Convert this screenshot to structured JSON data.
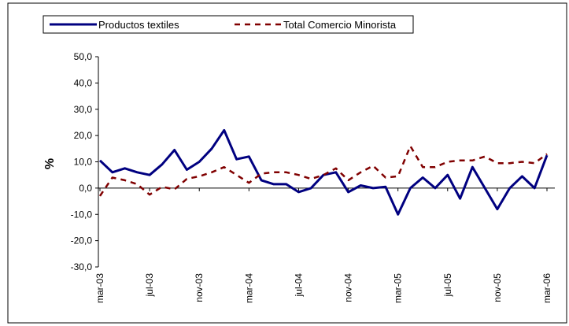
{
  "chart_data": {
    "type": "line",
    "y_label": "%",
    "categories": [
      "mar-03",
      null,
      null,
      null,
      "jul-03",
      null,
      null,
      null,
      "nov-03",
      null,
      null,
      null,
      "mar-04",
      null,
      null,
      null,
      "jul-04",
      null,
      null,
      null,
      "nov-04",
      null,
      null,
      null,
      "mar-05",
      null,
      null,
      null,
      "jul-05",
      null,
      null,
      null,
      "nov-05",
      null,
      null,
      null,
      "mar-06"
    ],
    "series": [
      {
        "name": "Productos textiles",
        "color": "#000080",
        "dash": false,
        "values": [
          10.5,
          6,
          7.5,
          6,
          5,
          9,
          14.5,
          7,
          10,
          15,
          22,
          11,
          12,
          3,
          1.5,
          1.5,
          -1.5,
          0,
          5,
          6,
          -1.5,
          1,
          0,
          0.5,
          -10,
          0,
          4,
          0,
          5,
          -4,
          8,
          0,
          -8,
          0,
          4.5,
          0,
          12.5
        ]
      },
      {
        "name": "Total Comercio Minorista",
        "color": "#800000",
        "dash": true,
        "values": [
          -3,
          4,
          3,
          1.5,
          -2.5,
          0.5,
          -0.5,
          3.5,
          4.5,
          6,
          8,
          5,
          2,
          5.5,
          6,
          6,
          5,
          3.5,
          5,
          7.5,
          3,
          6,
          8.5,
          4,
          4.5,
          16,
          8,
          8,
          10,
          10.5,
          10.5,
          12,
          9.5,
          9.5,
          10,
          9.5,
          13
        ]
      }
    ],
    "ylim": [
      -30,
      50
    ],
    "yticks": [
      {
        "value": -30,
        "label": "-30,0"
      },
      {
        "value": -20,
        "label": "-20,0"
      },
      {
        "value": -10,
        "label": "-10,0"
      },
      {
        "value": 0,
        "label": "0,0"
      },
      {
        "value": 10,
        "label": "10,0"
      },
      {
        "value": 20,
        "label": "20,0"
      },
      {
        "value": 30,
        "label": "30,0"
      },
      {
        "value": 40,
        "label": "40,0"
      },
      {
        "value": 50,
        "label": "50,0"
      }
    ],
    "legend": "top-left"
  }
}
